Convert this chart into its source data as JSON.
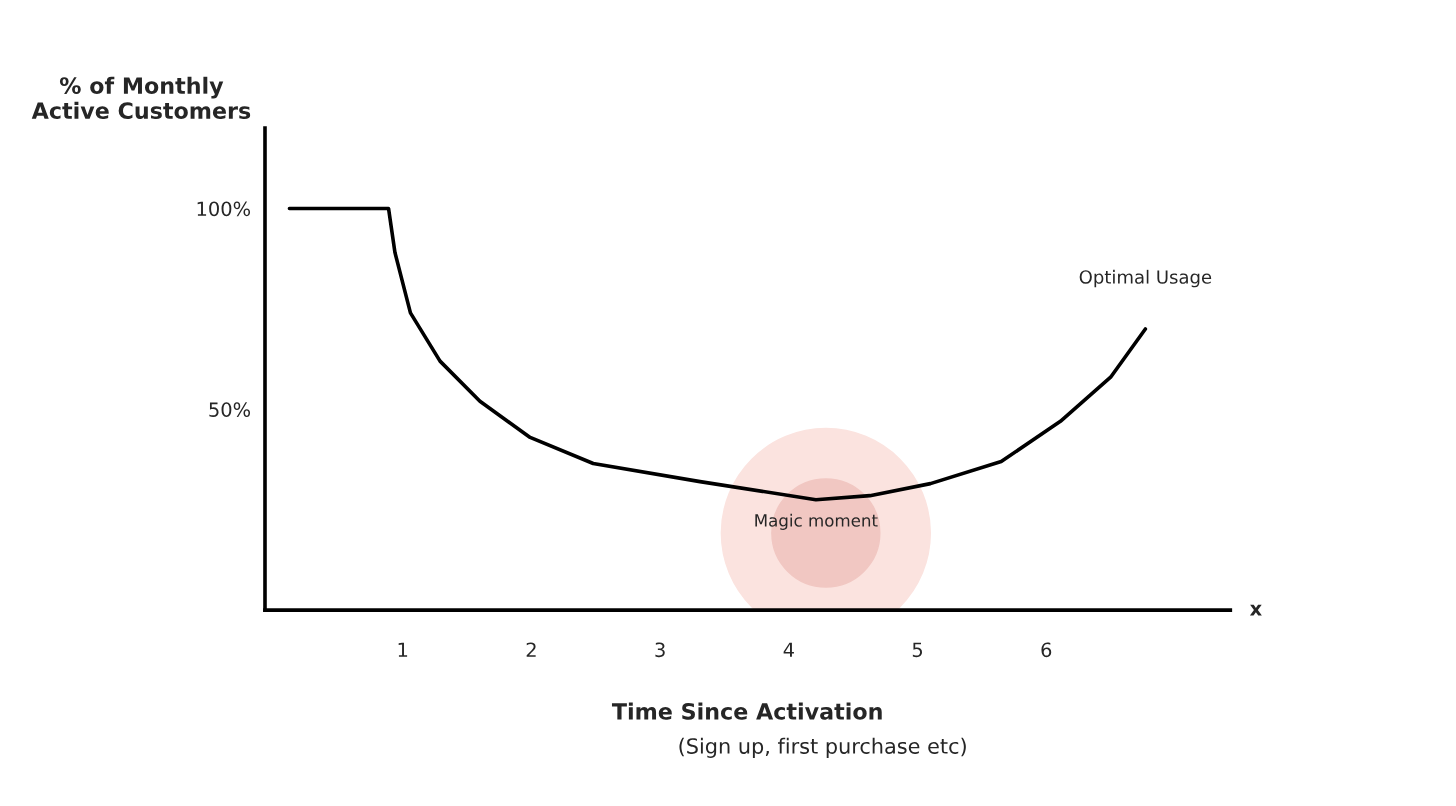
{
  "chart_data": {
    "type": "line",
    "ylabel": "% of Monthly\nActive Customers",
    "xlabel": "Time Since Activation",
    "annotations": [
      "(Sign up, first purchase etc)",
      "x",
      "Magic moment",
      "Optimal Usage"
    ],
    "series": [
      {
        "color": "#000000",
        "x": [
          0.12,
          0.89,
          0.94,
          1.06,
          1.29,
          1.6,
          1.99,
          2.48,
          3.31,
          4.21,
          4.63,
          5.1,
          5.65,
          6.11,
          6.5,
          6.77
        ],
        "values": [
          100,
          100,
          89,
          74,
          62,
          52,
          43,
          36.5,
          32,
          27.5,
          28.5,
          31.5,
          37,
          47,
          58,
          70
        ]
      }
    ],
    "xlim": [
      -0.07,
      7.43
    ],
    "ylim": [
      0,
      120
    ],
    "xticks": [
      1,
      2,
      3,
      4,
      5,
      6
    ],
    "yticks": [
      {
        "value": 100,
        "label": "100%"
      },
      {
        "value": 50,
        "label": "50%"
      }
    ],
    "grid": false,
    "legend": false,
    "marker": "none",
    "line_style": "solid"
  }
}
